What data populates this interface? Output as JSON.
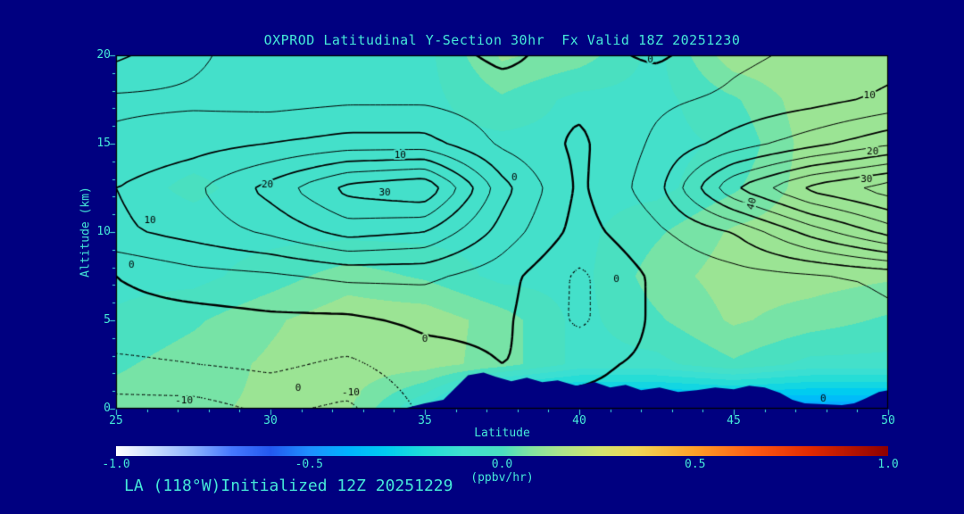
{
  "window": {
    "background": "#000080",
    "accent_color": "#45e8d8"
  },
  "header": {
    "title": "OXPROD Latitudinal Y-Section 30hr  Fx Valid 18Z 20251230"
  },
  "footer": {
    "annotation": "LA (118°W)Initialized 12Z 20251229"
  },
  "chart_data": {
    "type": "heatmap",
    "subtype": "filled-contour-cross-section",
    "title": "OXPROD Latitudinal Y-Section 30hr  Fx Valid 18Z 20251230",
    "xlabel": "Latitude",
    "ylabel": "Altitude (km)",
    "xlim": [
      25,
      50
    ],
    "ylim": [
      0,
      20
    ],
    "x_ticks": [
      25,
      30,
      35,
      40,
      45,
      50
    ],
    "y_ticks": [
      0,
      5,
      10,
      15,
      20
    ],
    "x_minor_step": 1,
    "y_minor_step": 1,
    "grid": false,
    "contour_field": {
      "line_color": "#000000",
      "negative_style": "dotted",
      "levels": [
        -10,
        -5,
        0,
        5,
        10,
        15,
        20,
        25,
        30,
        35,
        40,
        45
      ],
      "lats": [
        25,
        27.5,
        30,
        32.5,
        35,
        37.5,
        40,
        42.5,
        45,
        47.5,
        50
      ],
      "alts": [
        0,
        2.5,
        5,
        7.5,
        10,
        12.5,
        15,
        17.5,
        20
      ],
      "values": [
        [
          -12,
          -12,
          -9,
          -11,
          -4,
          0,
          1,
          1,
          1,
          0,
          2
        ],
        [
          -6,
          -5,
          -4,
          -6,
          -2,
          0,
          -1,
          1,
          2,
          1,
          3
        ],
        [
          -2,
          -2,
          -1,
          -1,
          1,
          1,
          -6,
          1,
          2,
          2,
          4
        ],
        [
          0,
          3,
          4,
          6,
          6,
          2,
          -6,
          1,
          3,
          4,
          6
        ],
        [
          9,
          12,
          16,
          22,
          20,
          8,
          -2,
          4,
          10,
          22,
          32
        ],
        [
          10,
          14,
          22,
          32,
          35,
          12,
          -1,
          8,
          30,
          42,
          48
        ],
        [
          6,
          8,
          10,
          12,
          12,
          4,
          -1,
          6,
          12,
          18,
          24
        ],
        [
          4,
          4,
          3,
          4,
          4,
          2,
          1,
          4,
          6,
          8,
          11
        ],
        [
          11,
          6,
          2,
          1,
          2,
          -1,
          2,
          -1,
          4,
          6,
          8
        ]
      ],
      "labels": [
        {
          "text": "10",
          "lat": 34.2,
          "alt": 14.35
        },
        {
          "text": "20",
          "lat": 29.9,
          "alt": 12.65
        },
        {
          "text": "30",
          "lat": 33.7,
          "alt": 12.2
        },
        {
          "text": "0",
          "lat": 37.9,
          "alt": 13.05
        },
        {
          "text": "10",
          "lat": 26.1,
          "alt": 10.65
        },
        {
          "text": "0",
          "lat": 25.5,
          "alt": 8.1
        },
        {
          "text": "0",
          "lat": 35.0,
          "alt": 3.95
        },
        {
          "text": "0",
          "lat": 30.9,
          "alt": 1.15
        },
        {
          "text": "-10",
          "lat": 27.2,
          "alt": 0.45
        },
        {
          "text": "-10",
          "lat": 32.6,
          "alt": 0.9
        },
        {
          "text": "0",
          "lat": 41.2,
          "alt": 7.3
        },
        {
          "text": "40",
          "lat": 45.6,
          "alt": 11.6,
          "rot": -75
        },
        {
          "text": "10",
          "lat": 49.4,
          "alt": 17.7
        },
        {
          "text": "20",
          "lat": 49.5,
          "alt": 14.55
        },
        {
          "text": "30",
          "lat": 49.3,
          "alt": 12.95
        },
        {
          "text": "0",
          "lat": 47.9,
          "alt": 0.55
        },
        {
          "text": "0",
          "lat": 42.3,
          "alt": 19.75
        }
      ]
    },
    "shading_field": {
      "quant_step": 0.06,
      "lats": [
        25,
        27.5,
        30,
        32.5,
        35,
        37.5,
        40,
        42.5,
        45,
        47.5,
        50
      ],
      "alts": [
        0,
        2.5,
        5,
        7.5,
        10,
        12.5,
        15,
        17.5,
        20
      ],
      "values": [
        [
          0.06,
          0.08,
          0.1,
          0.1,
          -0.1,
          -0.45,
          -0.45,
          -0.45,
          -0.45,
          -0.45,
          -0.45
        ],
        [
          0.02,
          0.06,
          0.1,
          0.13,
          0.12,
          0.06,
          -0.05,
          -0.05,
          0.02,
          -0.05,
          -0.05
        ],
        [
          -0.02,
          0.02,
          0.08,
          0.13,
          0.13,
          0.06,
          -0.05,
          0.02,
          0.1,
          0.06,
          0.02
        ],
        [
          -0.05,
          -0.05,
          0.0,
          0.06,
          0.02,
          -0.05,
          -0.05,
          0.06,
          0.12,
          0.12,
          0.1
        ],
        [
          -0.05,
          -0.05,
          -0.05,
          -0.05,
          -0.05,
          -0.05,
          -0.05,
          0.02,
          0.1,
          0.13,
          0.13
        ],
        [
          -0.05,
          -0.02,
          -0.05,
          -0.05,
          -0.05,
          -0.05,
          -0.05,
          -0.05,
          0.02,
          0.12,
          0.14
        ],
        [
          -0.05,
          -0.05,
          -0.05,
          -0.05,
          -0.05,
          -0.05,
          -0.05,
          -0.05,
          -0.02,
          0.12,
          0.14
        ],
        [
          -0.05,
          -0.05,
          -0.05,
          -0.05,
          -0.05,
          0.02,
          -0.05,
          -0.05,
          0.02,
          0.13,
          0.15
        ],
        [
          -0.05,
          -0.05,
          -0.05,
          -0.05,
          -0.05,
          0.1,
          0.06,
          -0.05,
          0.13,
          0.15,
          0.15
        ]
      ]
    },
    "terrain": {
      "color": "#000080",
      "points": [
        [
          34.3,
          0
        ],
        [
          35.0,
          0.3
        ],
        [
          35.6,
          0.5
        ],
        [
          36.0,
          1.2
        ],
        [
          36.4,
          1.9
        ],
        [
          36.9,
          2.05
        ],
        [
          37.3,
          1.8
        ],
        [
          37.8,
          1.55
        ],
        [
          38.3,
          1.75
        ],
        [
          38.8,
          1.5
        ],
        [
          39.3,
          1.6
        ],
        [
          39.9,
          1.3
        ],
        [
          40.5,
          1.5
        ],
        [
          41.0,
          1.2
        ],
        [
          41.5,
          1.35
        ],
        [
          42.0,
          1.05
        ],
        [
          42.6,
          1.2
        ],
        [
          43.2,
          0.95
        ],
        [
          43.8,
          1.05
        ],
        [
          44.4,
          1.2
        ],
        [
          45.0,
          1.1
        ],
        [
          45.5,
          1.3
        ],
        [
          46.0,
          1.2
        ],
        [
          46.5,
          0.9
        ],
        [
          46.9,
          0.5
        ],
        [
          47.3,
          0.3
        ],
        [
          47.9,
          0.25
        ],
        [
          48.5,
          0.2
        ],
        [
          48.9,
          0.3
        ],
        [
          49.3,
          0.6
        ],
        [
          49.7,
          0.95
        ],
        [
          50,
          1.05
        ]
      ]
    },
    "colorbar": {
      "min": -1.0,
      "max": 1.0,
      "tick_labels": [
        "-1.0",
        "-0.5",
        "0.0",
        "0.5",
        "1.0"
      ],
      "units": "(ppbv/hr)",
      "stops": [
        [
          -1.0,
          "#ffffff"
        ],
        [
          -0.9,
          "#c8dcff"
        ],
        [
          -0.8,
          "#8cb2ff"
        ],
        [
          -0.7,
          "#4678ff"
        ],
        [
          -0.6,
          "#2358f0"
        ],
        [
          -0.5,
          "#1e90ff"
        ],
        [
          -0.4,
          "#00b2ff"
        ],
        [
          -0.3,
          "#00ccf0"
        ],
        [
          -0.2,
          "#20dcd8"
        ],
        [
          -0.1,
          "#40e0d0"
        ],
        [
          0.0,
          "#4ae0c0"
        ],
        [
          0.08,
          "#86e49e"
        ],
        [
          0.15,
          "#abe48c"
        ],
        [
          0.25,
          "#d2e470"
        ],
        [
          0.35,
          "#f0d656"
        ],
        [
          0.5,
          "#ffa028"
        ],
        [
          0.65,
          "#ff5a14"
        ],
        [
          0.8,
          "#e12800"
        ],
        [
          1.0,
          "#8c0000"
        ]
      ]
    }
  }
}
